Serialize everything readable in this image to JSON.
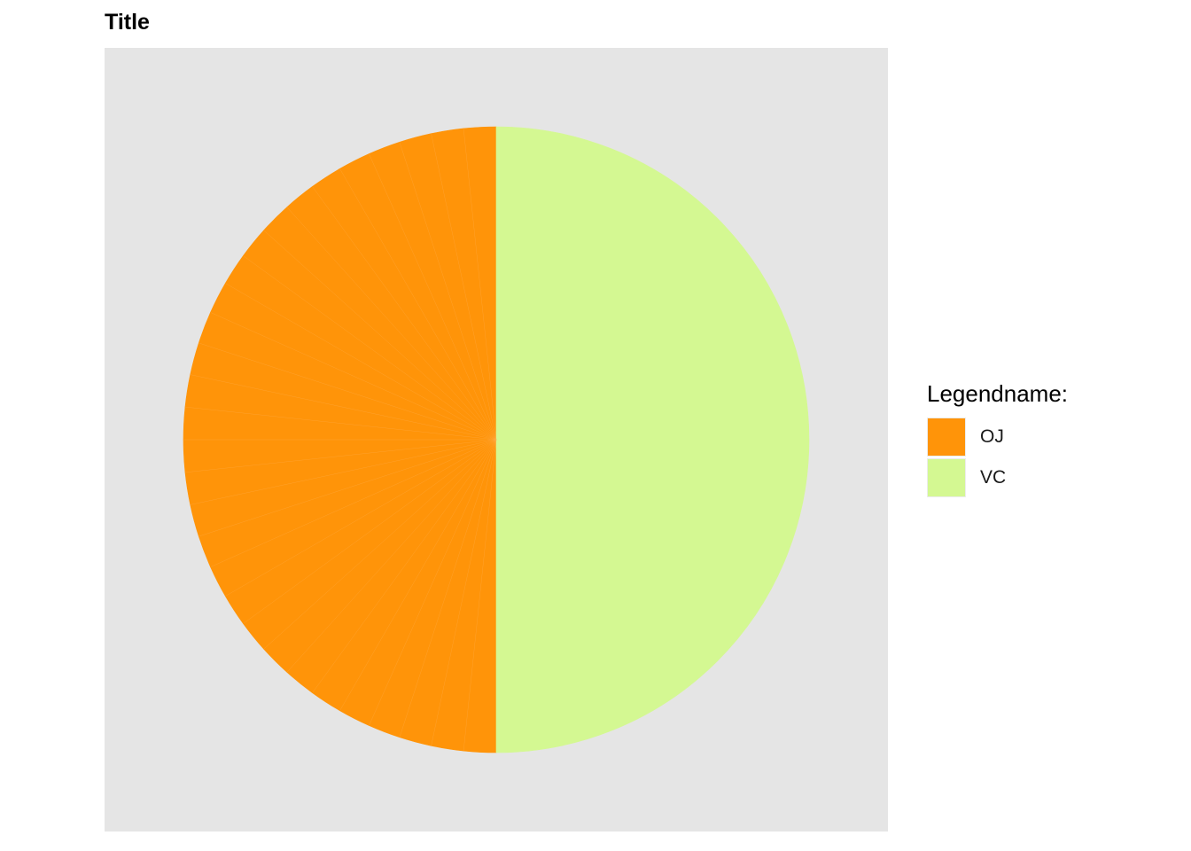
{
  "chart_data": {
    "type": "pie",
    "title": "Title",
    "legend": {
      "title": "Legendname:",
      "position": "right",
      "entries": [
        {
          "label": "OJ",
          "color": "#FF9409"
        },
        {
          "label": "VC",
          "color": "#D4F892"
        }
      ]
    },
    "slices": [
      {
        "group": "OJ",
        "value": 1
      },
      {
        "group": "OJ",
        "value": 1
      },
      {
        "group": "OJ",
        "value": 1
      },
      {
        "group": "OJ",
        "value": 1
      },
      {
        "group": "OJ",
        "value": 1
      },
      {
        "group": "OJ",
        "value": 1
      },
      {
        "group": "OJ",
        "value": 1
      },
      {
        "group": "OJ",
        "value": 1
      },
      {
        "group": "OJ",
        "value": 1
      },
      {
        "group": "OJ",
        "value": 1
      },
      {
        "group": "OJ",
        "value": 1
      },
      {
        "group": "OJ",
        "value": 1
      },
      {
        "group": "OJ",
        "value": 1
      },
      {
        "group": "OJ",
        "value": 1
      },
      {
        "group": "OJ",
        "value": 1
      },
      {
        "group": "OJ",
        "value": 1
      },
      {
        "group": "OJ",
        "value": 1
      },
      {
        "group": "OJ",
        "value": 1
      },
      {
        "group": "OJ",
        "value": 1
      },
      {
        "group": "OJ",
        "value": 1
      },
      {
        "group": "OJ",
        "value": 1
      },
      {
        "group": "OJ",
        "value": 1
      },
      {
        "group": "OJ",
        "value": 1
      },
      {
        "group": "OJ",
        "value": 1
      },
      {
        "group": "OJ",
        "value": 1
      },
      {
        "group": "OJ",
        "value": 1
      },
      {
        "group": "OJ",
        "value": 1
      },
      {
        "group": "OJ",
        "value": 1
      },
      {
        "group": "OJ",
        "value": 1
      },
      {
        "group": "OJ",
        "value": 1
      },
      {
        "group": "VC",
        "value": 30
      }
    ],
    "panel_background": "#E5E5E5",
    "grid": false
  }
}
